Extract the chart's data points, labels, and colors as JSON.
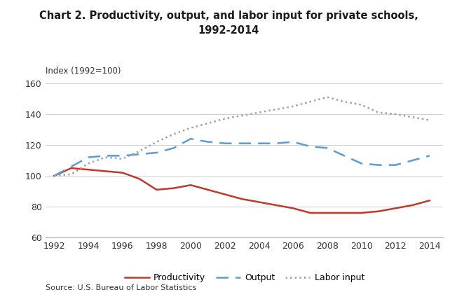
{
  "title": "Chart 2. Productivity, output, and labor input for private schools,\n1992-2014",
  "ylabel": "Index (1992=100)",
  "source": "Source: U.S. Bureau of Labor Statistics",
  "years": [
    1992,
    1993,
    1994,
    1995,
    1996,
    1997,
    1998,
    1999,
    2000,
    2001,
    2002,
    2003,
    2004,
    2005,
    2006,
    2007,
    2008,
    2009,
    2010,
    2011,
    2012,
    2013,
    2014
  ],
  "productivity": [
    100,
    105,
    104,
    103,
    102,
    98,
    91,
    92,
    94,
    91,
    88,
    85,
    83,
    81,
    79,
    76,
    76,
    76,
    76,
    77,
    79,
    81,
    84
  ],
  "output": [
    100,
    106,
    112,
    113,
    113,
    114,
    115,
    118,
    124,
    122,
    121,
    121,
    121,
    121,
    122,
    119,
    118,
    113,
    108,
    107,
    107,
    110,
    113
  ],
  "labor_input": [
    100,
    101,
    108,
    112,
    111,
    116,
    122,
    127,
    131,
    134,
    137,
    139,
    141,
    143,
    145,
    148,
    151,
    148,
    146,
    141,
    140,
    138,
    136
  ],
  "productivity_color": "#c0392b",
  "output_color": "#5b9bd5",
  "labor_input_color": "#a0a0a0",
  "ylim": [
    60,
    160
  ],
  "yticks": [
    60,
    80,
    100,
    120,
    140,
    160
  ],
  "xticks": [
    1992,
    1994,
    1996,
    1998,
    2000,
    2002,
    2004,
    2006,
    2008,
    2010,
    2012,
    2014
  ],
  "background_color": "#ffffff",
  "grid_color": "#d0d0d0"
}
